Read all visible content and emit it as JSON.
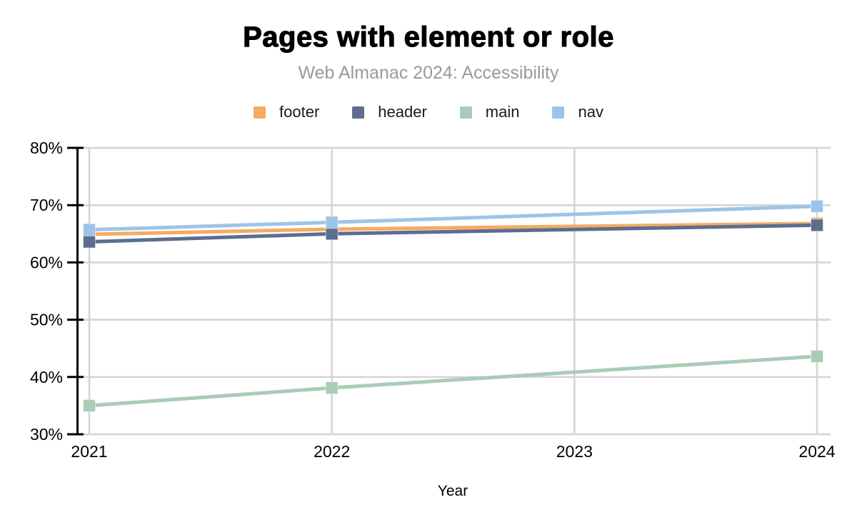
{
  "page": {
    "background": "#FFFFFF"
  },
  "header": {
    "title": "Pages with element or role",
    "subtitle": "Web Almanac 2024: Accessibility"
  },
  "legend": {
    "position": "top",
    "items": [
      {
        "label": "footer",
        "color": "#F5AB63"
      },
      {
        "label": "header",
        "color": "#5B6E8F"
      },
      {
        "label": "main",
        "color": "#A9CCB5"
      },
      {
        "label": "nav",
        "color": "#9CC4E8"
      }
    ]
  },
  "chart_data": {
    "type": "line",
    "title": "Pages with element or role",
    "subtitle": "Web Almanac 2024: Accessibility",
    "xlabel": "Year",
    "ylabel": "",
    "x": [
      2021,
      2022,
      2024
    ],
    "x_axis_ticks": [
      "2021",
      "2022",
      "2023",
      "2024"
    ],
    "x_axis_tick_values": [
      2021,
      2022,
      2023,
      2024
    ],
    "xlim": [
      2021,
      2024
    ],
    "ylim": [
      30,
      80
    ],
    "y_ticks": [
      "30%",
      "40%",
      "50%",
      "60%",
      "70%",
      "80%"
    ],
    "y_tick_values": [
      30,
      40,
      50,
      60,
      70,
      80
    ],
    "grid": true,
    "legend_position": "top",
    "marker_shape": "square",
    "note": "No data points for 2023; lines connect 2022 directly to 2024.",
    "series": [
      {
        "name": "footer",
        "color": "#F5AB63",
        "values": [
          64.9,
          65.8,
          66.8
        ]
      },
      {
        "name": "header",
        "color": "#5B6E8F",
        "values": [
          63.6,
          65.0,
          66.5
        ]
      },
      {
        "name": "main",
        "color": "#A9CCB5",
        "values": [
          35.0,
          38.1,
          43.6
        ]
      },
      {
        "name": "nav",
        "color": "#9CC4E8",
        "values": [
          65.7,
          67.0,
          69.8
        ]
      }
    ],
    "colors": {
      "gridline": "#D4D4D4",
      "axis": "#000000",
      "tick_label": "#000000"
    }
  }
}
